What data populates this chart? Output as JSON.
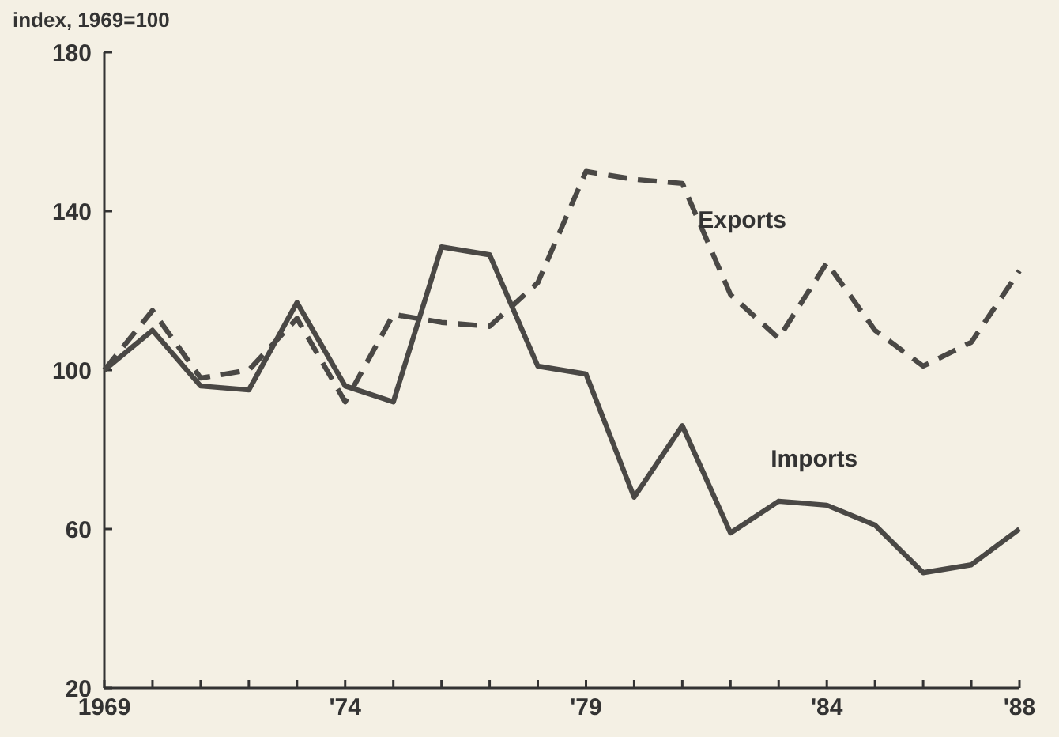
{
  "chart_data": {
    "type": "line",
    "ylabel": "index, 1969=100",
    "x": [
      1969,
      1970,
      1971,
      1972,
      1973,
      1974,
      1975,
      1976,
      1977,
      1978,
      1979,
      1980,
      1981,
      1982,
      1983,
      1984,
      1985,
      1986,
      1987,
      1988
    ],
    "series": [
      {
        "name": "Exports",
        "color": "#4a4845",
        "line_style": "dashed",
        "values": [
          100,
          115,
          98,
          100,
          113,
          92,
          114,
          112,
          111,
          122,
          150,
          148,
          147,
          119,
          108,
          127,
          110,
          101,
          107,
          125
        ]
      },
      {
        "name": "Imports",
        "color": "#4a4845",
        "line_style": "solid",
        "values": [
          100,
          110,
          96,
          95,
          117,
          96,
          92,
          131,
          129,
          101,
          99,
          68,
          86,
          59,
          67,
          66,
          61,
          49,
          51,
          60
        ]
      }
    ],
    "xlim": [
      1969,
      1988
    ],
    "xticks": [
      {
        "value": 1969,
        "label": "1969"
      },
      {
        "value": 1970,
        "label": null
      },
      {
        "value": 1971,
        "label": null
      },
      {
        "value": 1972,
        "label": null
      },
      {
        "value": 1973,
        "label": null
      },
      {
        "value": 1974,
        "label": "'74"
      },
      {
        "value": 1975,
        "label": null
      },
      {
        "value": 1976,
        "label": null
      },
      {
        "value": 1977,
        "label": null
      },
      {
        "value": 1978,
        "label": null
      },
      {
        "value": 1979,
        "label": "'79"
      },
      {
        "value": 1980,
        "label": null
      },
      {
        "value": 1981,
        "label": null
      },
      {
        "value": 1982,
        "label": null
      },
      {
        "value": 1983,
        "label": null
      },
      {
        "value": 1984,
        "label": "'84"
      },
      {
        "value": 1985,
        "label": null
      },
      {
        "value": 1986,
        "label": null
      },
      {
        "value": 1987,
        "label": null
      },
      {
        "value": 1988,
        "label": "'88"
      }
    ],
    "ylim": [
      20,
      180
    ],
    "yticks": [
      20,
      60,
      100,
      140,
      180
    ],
    "grid": false,
    "legend": false,
    "marker": "none"
  }
}
